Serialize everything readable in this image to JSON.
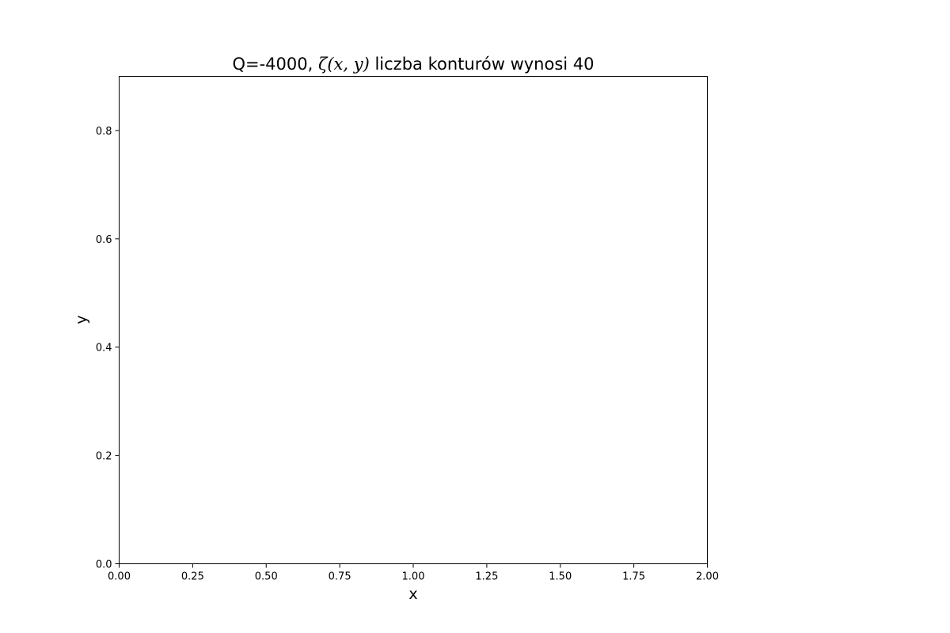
{
  "chart_data": {
    "type": "heatmap",
    "title": {
      "prefix": "Q=-4000, ",
      "math": "ζ(x, y)",
      "suffix": " liczba konturów wynosi 40"
    },
    "xlabel": "x",
    "ylabel": "y",
    "xlim": [
      0.0,
      2.0
    ],
    "ylim": [
      0.0,
      0.9
    ],
    "xticks": [
      0.0,
      0.25,
      0.5,
      0.75,
      1.0,
      1.25,
      1.5,
      1.75,
      2.0
    ],
    "xtick_labels": [
      "0.00",
      "0.25",
      "0.50",
      "0.75",
      "1.00",
      "1.25",
      "1.50",
      "1.75",
      "2.00"
    ],
    "yticks": [
      0.0,
      0.2,
      0.4,
      0.6,
      0.8
    ],
    "ytick_labels": [
      "0.0",
      "0.2",
      "0.4",
      "0.6",
      "0.8"
    ],
    "grid": false,
    "contour_levels": 40,
    "series": []
  }
}
